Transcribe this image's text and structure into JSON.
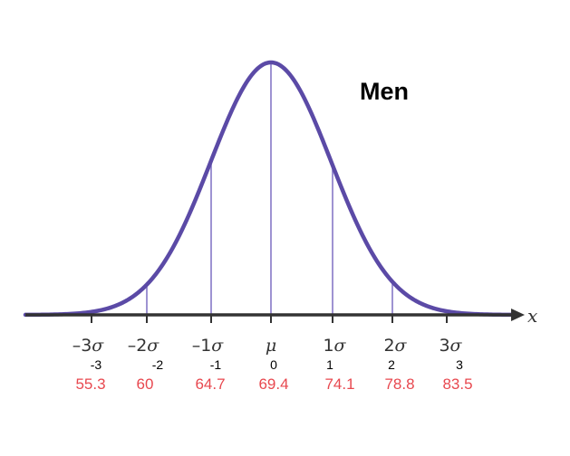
{
  "title": "Men",
  "axis_variable": "x",
  "sigma_symbol": "σ",
  "mean_symbol": "μ",
  "colors": {
    "curve": "#5b4aa6",
    "guides": "#8678c7",
    "axis": "#333333",
    "values": "#e8484f"
  },
  "points": [
    {
      "coef": "–3",
      "z": "-3",
      "value": "55.3"
    },
    {
      "coef": "–2",
      "z": "-2",
      "value": "60"
    },
    {
      "coef": "–1",
      "z": "-1",
      "value": "64.7"
    },
    {
      "coef": "",
      "z": "0",
      "value": "69.4"
    },
    {
      "coef": "1",
      "z": "1",
      "value": "74.1"
    },
    {
      "coef": "2",
      "z": "2",
      "value": "78.8"
    },
    {
      "coef": "3",
      "z": "3",
      "value": "83.5"
    }
  ]
}
